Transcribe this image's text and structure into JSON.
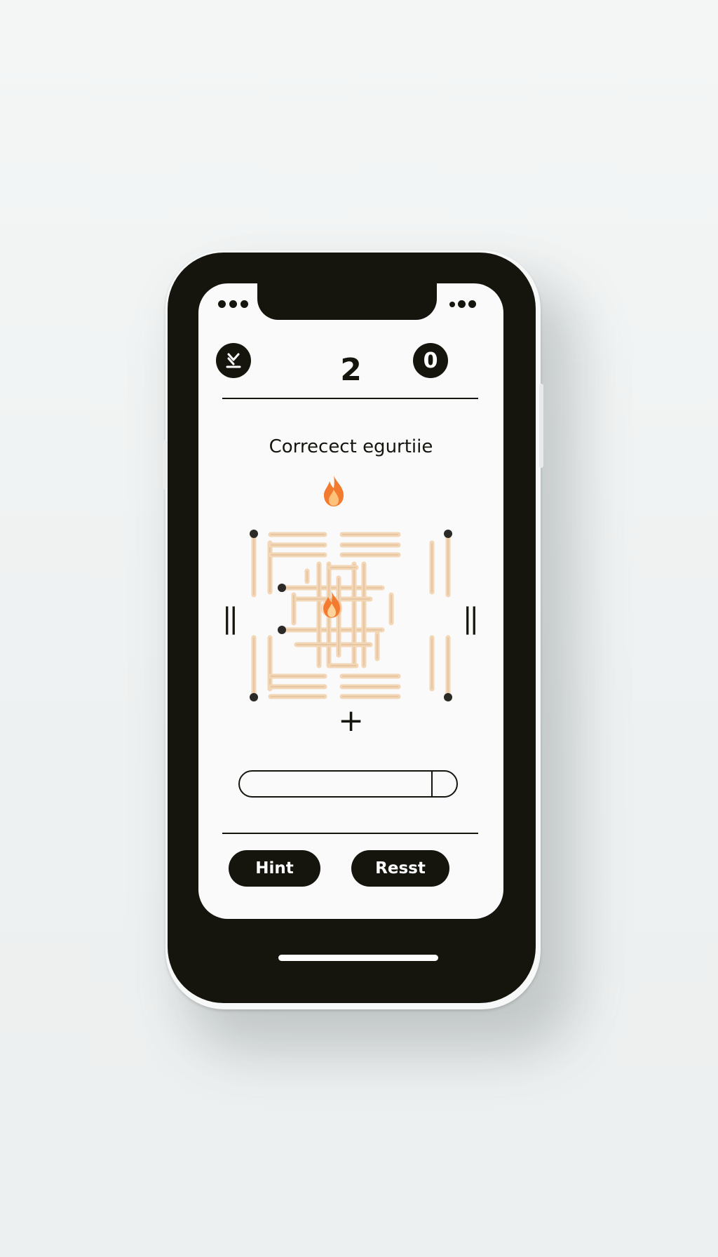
{
  "status_bar": {
    "left_icon": "three-dots-icon",
    "right_icon": "status-dots-icon"
  },
  "header": {
    "left_icon": "download-icon",
    "level": "2",
    "right_icon": "zero-icon",
    "right_glyph": "0"
  },
  "puzzle": {
    "title": "Correcect egurtiie",
    "top_icon": "flame-icon",
    "center_icon": "flame-icon",
    "left_operator": "||",
    "right_operator": "||",
    "bottom_operator": "+"
  },
  "answer": {
    "value": "",
    "placeholder": ""
  },
  "actions": {
    "hint_label": "Hint",
    "reset_label": "Resst"
  },
  "colors": {
    "device": "#15150e",
    "screen": "#fafafa",
    "match_wood": "#f3d6b6",
    "match_head": "#2b2a26",
    "flame": "#f07a2d"
  }
}
